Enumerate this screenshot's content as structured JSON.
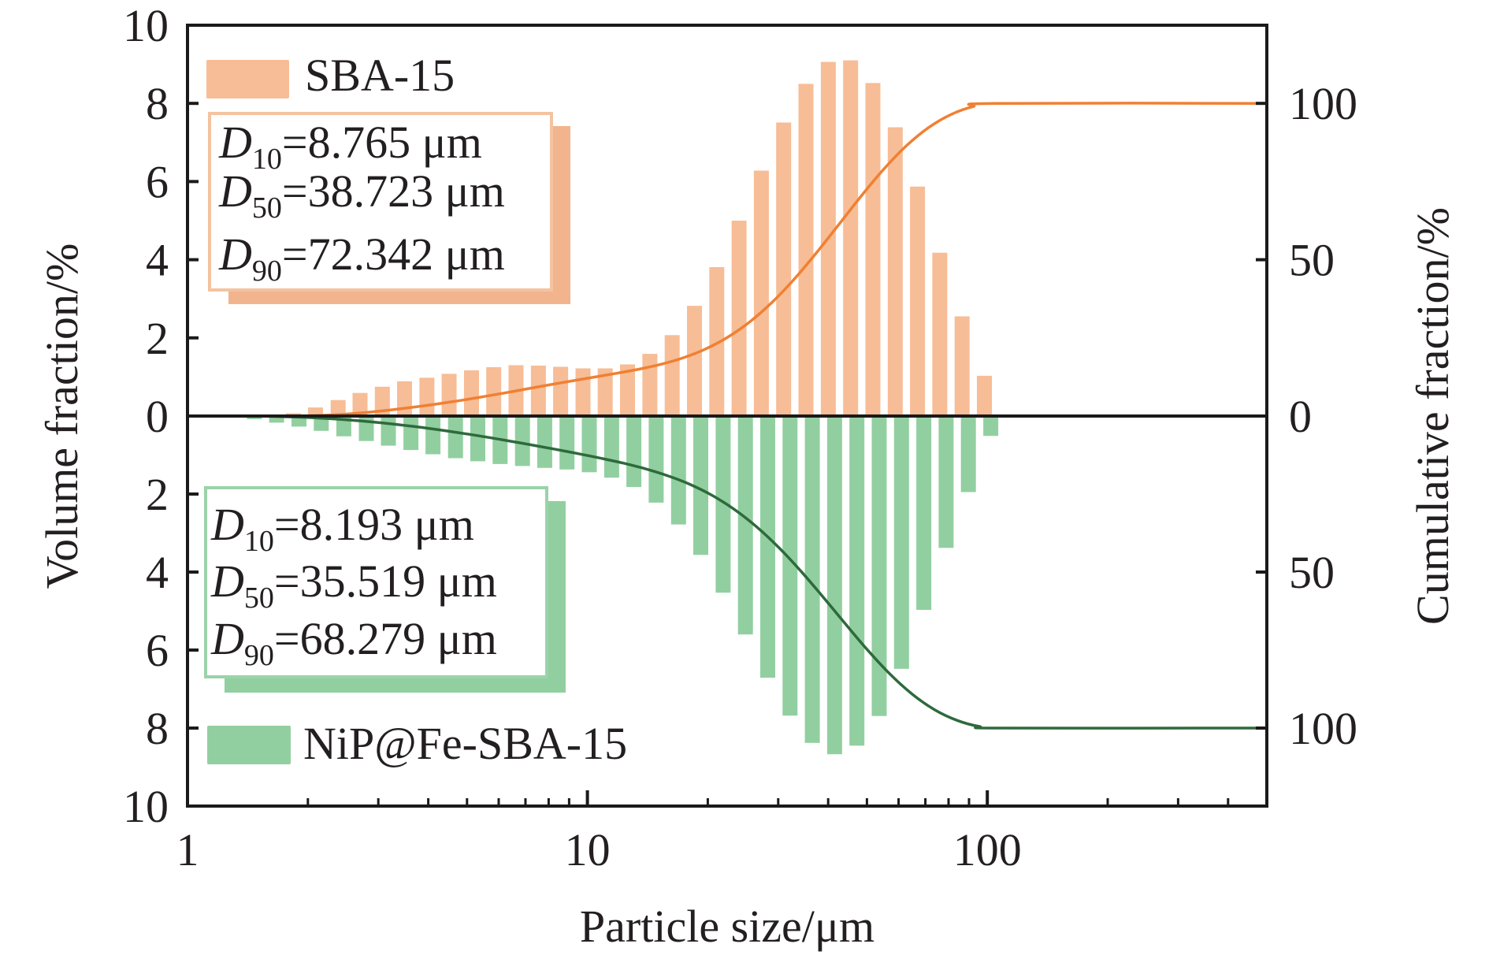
{
  "chart_data": {
    "type": "bar",
    "title": "",
    "xlabel": "Particle size/μm",
    "ylabel_left": "Volume fraction/%",
    "ylabel_right": "Cumulative fraction/%",
    "x_scale": "log",
    "xlim": [
      1,
      500
    ],
    "x_ticks": [
      {
        "value": 1,
        "label": "1"
      },
      {
        "value": 10,
        "label": "10"
      },
      {
        "value": 100,
        "label": "100"
      }
    ],
    "x_minor_ticks": [
      2,
      3,
      4,
      5,
      6,
      7,
      8,
      9,
      20,
      30,
      40,
      50,
      60,
      70,
      80,
      90,
      200,
      300,
      400
    ],
    "ylim_up": [
      0,
      10
    ],
    "ylim_down": [
      0,
      10
    ],
    "y_ticks_left_up": [
      "0",
      "2",
      "4",
      "6",
      "8",
      "10"
    ],
    "y_ticks_left_down": [
      "2",
      "4",
      "6",
      "8",
      "10"
    ],
    "y_ticks_right": [
      {
        "value": 100,
        "label": "100",
        "side": "up"
      },
      {
        "value": 50,
        "label": "50",
        "side": "up"
      },
      {
        "value": 0,
        "label": "0",
        "side": "zero"
      },
      {
        "value": 50,
        "label": "50",
        "side": "down"
      },
      {
        "value": 100,
        "label": "100",
        "side": "down"
      }
    ],
    "cumulative_full_scale_volume_fraction": 8,
    "grid": false,
    "series": [
      {
        "name": "SBA-15",
        "direction": "up",
        "bar_color": "#F7BD96",
        "line_color": "#F08033",
        "box_border": "#F4C3A0",
        "box_shadow": "#F2B48D",
        "x": [
          1.84,
          2.09,
          2.38,
          2.7,
          3.07,
          3.49,
          3.97,
          4.51,
          5.13,
          5.83,
          6.63,
          7.54,
          8.57,
          9.75,
          11.08,
          12.6,
          14.33,
          16.29,
          18.52,
          21.06,
          23.95,
          27.23,
          30.96,
          35.2,
          40.03,
          45.51,
          51.75,
          58.84,
          66.9,
          76.07,
          86.49,
          98.34
        ],
        "values": [
          0.07,
          0.22,
          0.41,
          0.59,
          0.75,
          0.89,
          0.98,
          1.08,
          1.17,
          1.25,
          1.3,
          1.29,
          1.26,
          1.22,
          1.22,
          1.32,
          1.59,
          2.07,
          2.82,
          3.81,
          5.0,
          6.28,
          7.51,
          8.5,
          9.06,
          9.1,
          8.52,
          7.39,
          5.87,
          4.18,
          2.55,
          1.03
        ],
        "stats": [
          {
            "sym": "D",
            "sub": "10",
            "text": "=8.765 μm"
          },
          {
            "sym": "D",
            "sub": "50",
            "text": "=38.723 μm"
          },
          {
            "sym": "D",
            "sub": "90",
            "text": "=72.342 μm"
          }
        ]
      },
      {
        "name": "NiP@Fe-SBA-15",
        "direction": "down",
        "bar_color": "#92CFA0",
        "line_color": "#2E6A3C",
        "box_border": "#9BD3A8",
        "box_shadow": "#92CFA0",
        "x": [
          1.47,
          1.67,
          1.9,
          2.16,
          2.46,
          2.8,
          3.18,
          3.62,
          4.11,
          4.68,
          5.32,
          6.05,
          6.88,
          7.82,
          8.89,
          10.11,
          11.5,
          13.07,
          14.86,
          16.9,
          19.21,
          21.85,
          24.84,
          28.24,
          32.11,
          36.51,
          41.52,
          47.2,
          53.67,
          61.03,
          69.39,
          78.89,
          89.7,
          102.0
        ],
        "values": [
          0.08,
          0.17,
          0.27,
          0.38,
          0.52,
          0.64,
          0.76,
          0.87,
          0.98,
          1.08,
          1.16,
          1.23,
          1.28,
          1.33,
          1.37,
          1.44,
          1.58,
          1.82,
          2.22,
          2.78,
          3.56,
          4.53,
          5.6,
          6.71,
          7.68,
          8.38,
          8.67,
          8.45,
          7.69,
          6.48,
          4.97,
          3.38,
          1.95,
          0.51
        ],
        "stats": [
          {
            "sym": "D",
            "sub": "10",
            "text": "=8.193 μm"
          },
          {
            "sym": "D",
            "sub": "50",
            "text": "=35.519 μm"
          },
          {
            "sym": "D",
            "sub": "90",
            "text": "=68.279 μm"
          }
        ]
      }
    ],
    "legend_placement": "top-left (SBA-15), bottom-left (NiP@Fe-SBA-15)"
  }
}
